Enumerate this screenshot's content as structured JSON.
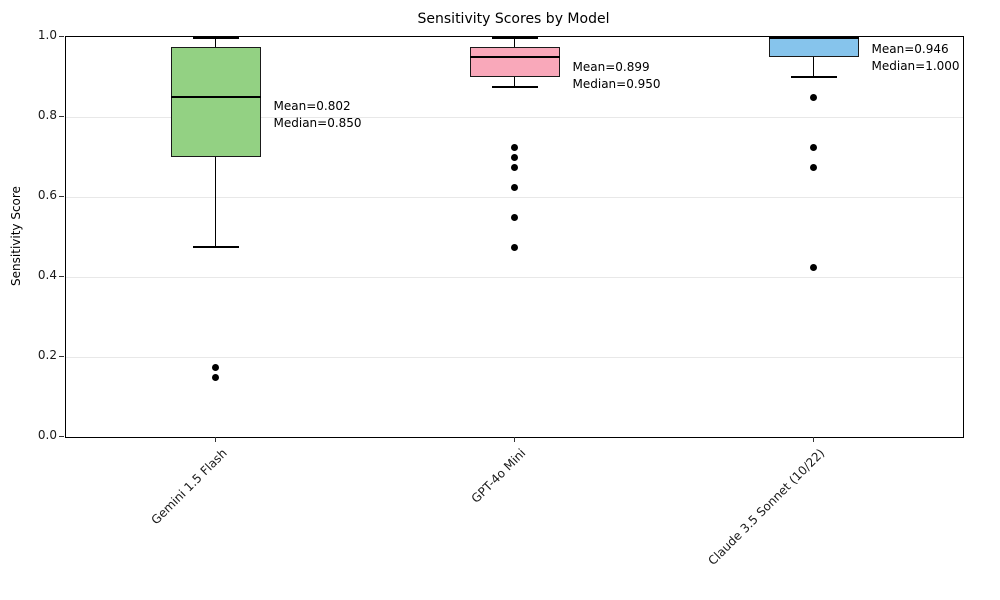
{
  "chart_data": {
    "type": "boxplot",
    "title": "Sensitivity Scores by Model",
    "ylabel": "Sensitivity Score",
    "xlabel": "",
    "ylim": [
      0.0,
      1.0
    ],
    "yticks": [
      0.0,
      0.2,
      0.4,
      0.6,
      0.8,
      1.0
    ],
    "ytick_labels": [
      "0.0",
      "0.2",
      "0.4",
      "0.6",
      "0.8",
      "1.0"
    ],
    "grid": "horizontal-light",
    "legend": "none",
    "categories": [
      "Gemini 1.5 Flash",
      "GPT-4o Mini",
      "Claude 3.5 Sonnet (10/22)"
    ],
    "series": [
      {
        "label": "Gemini 1.5 Flash",
        "box_color": "#93d183",
        "whisker_low": 0.475,
        "q1": 0.7,
        "median": 0.85,
        "q3": 0.975,
        "whisker_high": 1.0,
        "mean": 0.802,
        "outliers": [
          0.175,
          0.15
        ],
        "annotation_lines": [
          "Mean=0.802",
          "Median=0.850"
        ]
      },
      {
        "label": "GPT-4o Mini",
        "box_color": "#f9a8ba",
        "whisker_low": 0.875,
        "q1": 0.9,
        "median": 0.95,
        "q3": 0.975,
        "whisker_high": 1.0,
        "mean": 0.899,
        "outliers": [
          0.725,
          0.7,
          0.675,
          0.625,
          0.55,
          0.475
        ],
        "annotation_lines": [
          "Mean=0.899",
          "Median=0.950"
        ]
      },
      {
        "label": "Claude 3.5 Sonnet (10/22)",
        "box_color": "#86c4ec",
        "whisker_low": 0.9,
        "q1": 0.95,
        "median": 1.0,
        "q3": 1.0,
        "whisker_high": 1.0,
        "mean": 0.946,
        "outliers": [
          0.85,
          0.725,
          0.675,
          0.425
        ],
        "annotation_lines": [
          "Mean=0.946",
          "Median=1.000"
        ]
      }
    ],
    "style": {
      "edge_color": "#000000",
      "grid_color": "#e8e8e8",
      "background": "#ffffff"
    }
  }
}
